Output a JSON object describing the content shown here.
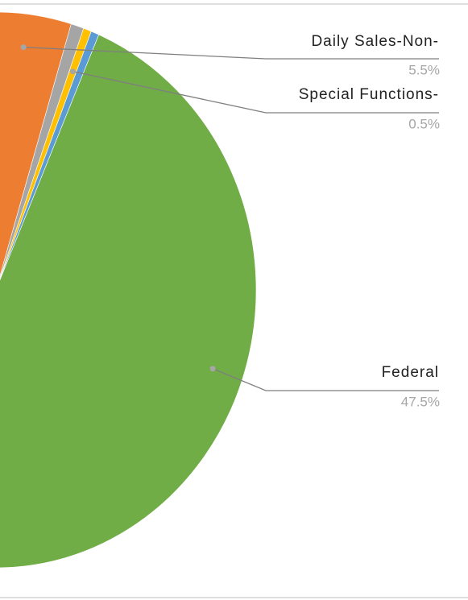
{
  "chart_data": {
    "type": "pie",
    "categories": [
      "Daily Sales-Non-",
      null,
      "Special Functions-",
      null,
      "Federal"
    ],
    "values": [
      5.5,
      0.8,
      0.5,
      0.5,
      47.5
    ],
    "value_labels": [
      "5.5%",
      null,
      "0.5%",
      null,
      "47.5%"
    ],
    "colors": [
      "#ed7d31",
      "#a5a5a5",
      "#ffc000",
      "#5b9bd5",
      "#70ad47"
    ]
  }
}
